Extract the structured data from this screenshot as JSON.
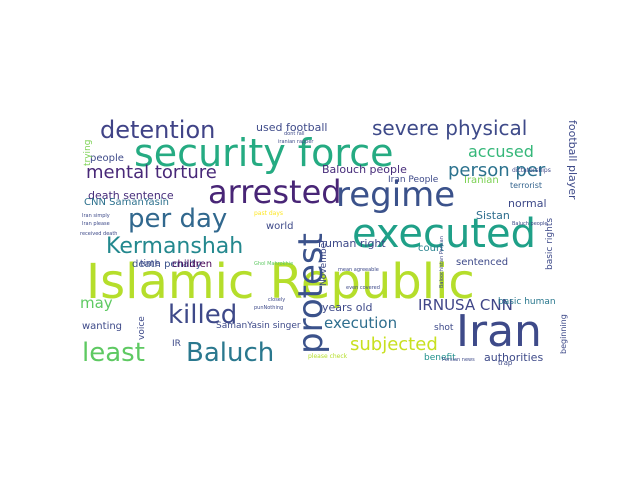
{
  "word_cloud": {
    "words": [
      {
        "text": "Islamic Republic",
        "color": "#b5de2b"
      },
      {
        "text": "executed",
        "color": "#1fa088"
      },
      {
        "text": "Iran",
        "color": "#3e4a89"
      },
      {
        "text": "security force",
        "color": "#25ab82"
      },
      {
        "text": "regime",
        "color": "#3b528b"
      },
      {
        "text": "arrested",
        "color": "#482576"
      },
      {
        "text": "protest",
        "color": "#3b528b"
      },
      {
        "text": "least",
        "color": "#5ec962"
      },
      {
        "text": "Baluch",
        "color": "#2a788e"
      },
      {
        "text": "killed",
        "color": "#3e4989"
      },
      {
        "text": "per day",
        "color": "#31688e"
      },
      {
        "text": "Kermanshah",
        "color": "#23888e"
      },
      {
        "text": "detention",
        "color": "#404387"
      },
      {
        "text": "severe physical",
        "color": "#3e4a89"
      },
      {
        "text": "mental torture",
        "color": "#482878"
      },
      {
        "text": "accused",
        "color": "#35b779"
      },
      {
        "text": "person per",
        "color": "#2c728e"
      },
      {
        "text": "subjected",
        "color": "#c8e020"
      },
      {
        "text": "IRNUSA CNN",
        "color": "#404688"
      },
      {
        "text": "execution",
        "color": "#2e6e8e"
      },
      {
        "text": "may",
        "color": "#5ec962"
      },
      {
        "text": "used football",
        "color": "#3e4a89"
      },
      {
        "text": "people",
        "color": "#3e4a89"
      },
      {
        "text": "death sentence",
        "color": "#472d7b"
      },
      {
        "text": "CNN SamanYasin",
        "color": "#2d718e"
      },
      {
        "text": "death penalty",
        "color": "#3b528b"
      },
      {
        "text": "Balouch people",
        "color": "#472c7a"
      },
      {
        "text": "Iran People",
        "color": "#3e4a89"
      },
      {
        "text": "Iranian",
        "color": "#7ad151"
      },
      {
        "text": "normal",
        "color": "#3e4a89"
      },
      {
        "text": "terrorist",
        "color": "#33638d"
      },
      {
        "text": "human right",
        "color": "#3e4a89"
      },
      {
        "text": "court",
        "color": "#26828e"
      },
      {
        "text": "Sistan",
        "color": "#2e6e8e"
      },
      {
        "text": "world",
        "color": "#3e4a89"
      },
      {
        "text": "time",
        "color": "#3e4a89"
      },
      {
        "text": "children",
        "color": "#440154"
      },
      {
        "text": "sentenced",
        "color": "#3e4a89"
      },
      {
        "text": "years old",
        "color": "#3e4a89"
      },
      {
        "text": "wanting",
        "color": "#3e4a89"
      },
      {
        "text": "SamanYasin singer",
        "color": "#3e4a89"
      },
      {
        "text": "shot",
        "color": "#3e4a89"
      },
      {
        "text": "IR",
        "color": "#3e4a89"
      },
      {
        "text": "authorities",
        "color": "#3e4a89"
      },
      {
        "text": "benefit",
        "color": "#21918c"
      },
      {
        "text": "basic human",
        "color": "#2a788e"
      },
      {
        "text": "football player",
        "color": "#3e4a89"
      },
      {
        "text": "basic rights",
        "color": "#3e4a89"
      },
      {
        "text": "beginning",
        "color": "#3e4a89"
      },
      {
        "text": "trying",
        "color": "#7ad151"
      },
      {
        "text": "voice",
        "color": "#3e4a89"
      },
      {
        "text": "November",
        "color": "#3e4a89"
      },
      {
        "text": "dictatorships",
        "color": "#3e4a89"
      },
      {
        "text": "trap",
        "color": "#3e4a89"
      },
      {
        "text": "Iran simply",
        "color": "#3e4a89"
      },
      {
        "text": "Iran please",
        "color": "#3e4a89"
      },
      {
        "text": "past days",
        "color": "#fde725"
      },
      {
        "text": "dont fall",
        "color": "#3e4a89"
      },
      {
        "text": "iranian rapper",
        "color": "#3e4a89"
      },
      {
        "text": "please check",
        "color": "#b5de2b"
      },
      {
        "text": "closely",
        "color": "#3e4a89"
      },
      {
        "text": "punNothing",
        "color": "#3e4a89"
      },
      {
        "text": "Ghol Mahrokhie",
        "color": "#5ec962"
      },
      {
        "text": "mean agreeable",
        "color": "#3e4a89"
      },
      {
        "text": "Baluch people",
        "color": "#3e4a89"
      },
      {
        "text": "Persian news",
        "color": "#3e4a89"
      },
      {
        "text": "received death",
        "color": "#3e4a89"
      },
      {
        "text": "even covered",
        "color": "#3e4a89"
      },
      {
        "text": "Baloochistan Persian",
        "color": "#3e4a89"
      }
    ]
  }
}
